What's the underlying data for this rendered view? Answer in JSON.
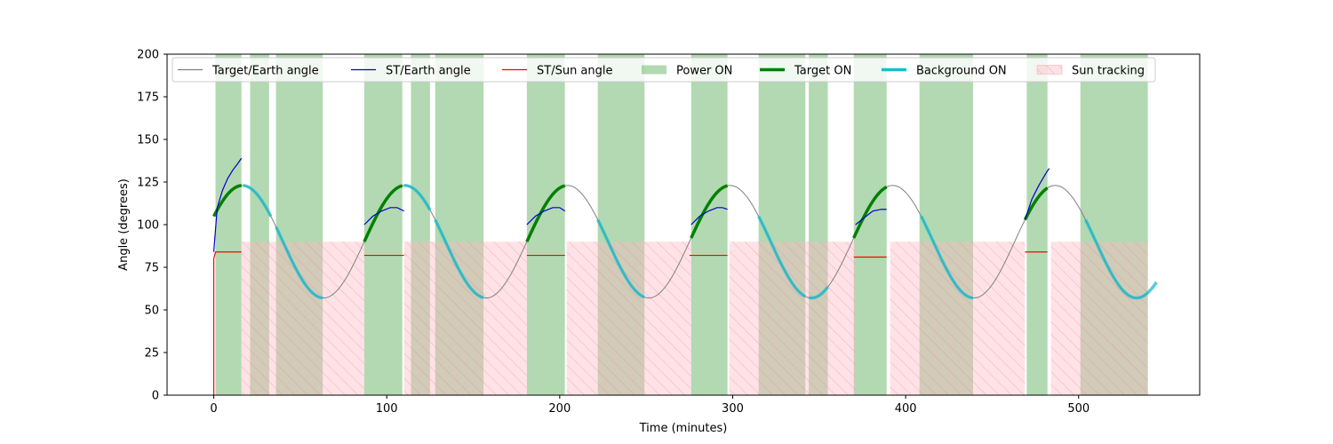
{
  "chart_data": {
    "type": "line",
    "title": "",
    "xlabel": "Time (minutes)",
    "ylabel": "Angle (degrees)",
    "xlim": [
      -27,
      570
    ],
    "ylim": [
      0,
      200
    ],
    "xticks": [
      0,
      100,
      200,
      300,
      400,
      500
    ],
    "yticks": [
      0,
      25,
      50,
      75,
      100,
      125,
      150,
      175,
      200
    ],
    "grid": false,
    "legend_placement": "top-center",
    "colors": {
      "target_earth": "#808080",
      "st_earth": "#0000cc",
      "st_sun": "#ff0000",
      "power_on": "#008000",
      "target_on": "#008000",
      "background_on": "#17becf",
      "sun_tracking": "#ffb6c1"
    },
    "legend": [
      {
        "key": "target_earth",
        "label": "Target/Earth angle",
        "style": "line-thin",
        "color": "#808080"
      },
      {
        "key": "st_earth",
        "label": "ST/Earth angle",
        "style": "line-thin",
        "color": "#0000cc"
      },
      {
        "key": "st_sun",
        "label": "ST/Sun angle",
        "style": "line-thin",
        "color": "#ff0000"
      },
      {
        "key": "power_on",
        "label": "Power ON",
        "style": "patch",
        "color": "#008000"
      },
      {
        "key": "target_on",
        "label": "Target ON",
        "style": "line-thick",
        "color": "#008000"
      },
      {
        "key": "background_on",
        "label": "Background ON",
        "style": "line-thick",
        "color": "#17becf"
      },
      {
        "key": "sun_tracking",
        "label": "Sun tracking",
        "style": "hatch-patch",
        "color": "#ffb6c1"
      }
    ],
    "target_earth_model": {
      "mean": 90,
      "amplitude": 33,
      "period": 94,
      "phase_min": 16.5
    },
    "x_range": [
      0,
      540
    ],
    "power_on": [
      [
        1,
        16
      ],
      [
        21,
        32
      ],
      [
        36,
        63
      ],
      [
        87,
        109
      ],
      [
        114,
        125
      ],
      [
        128,
        156
      ],
      [
        181,
        203
      ],
      [
        222,
        249
      ],
      [
        276,
        297
      ],
      [
        315,
        342
      ],
      [
        344,
        355
      ],
      [
        370,
        389
      ],
      [
        408,
        439
      ],
      [
        470,
        482
      ],
      [
        501,
        540
      ]
    ],
    "sun_tracking": [
      {
        "start": 16,
        "end": 87,
        "angle": 90
      },
      {
        "start": 110,
        "end": 181,
        "angle": 90
      },
      {
        "start": 204,
        "end": 276,
        "angle": 90
      },
      {
        "start": 298,
        "end": 371,
        "angle": 90
      },
      {
        "start": 391,
        "end": 469,
        "angle": 90
      },
      {
        "start": 484,
        "end": 540,
        "angle": 90
      }
    ],
    "target_on": [
      [
        0,
        16
      ],
      [
        87,
        109
      ],
      [
        181,
        203
      ],
      [
        276,
        297
      ],
      [
        370,
        389
      ],
      [
        469,
        482
      ]
    ],
    "background_on": [
      [
        17,
        33
      ],
      [
        36,
        63
      ],
      [
        110,
        125
      ],
      [
        128,
        156
      ],
      [
        222,
        249
      ],
      [
        315,
        342
      ],
      [
        344,
        355
      ],
      [
        409,
        439
      ],
      [
        504,
        545
      ]
    ],
    "st_earth_angle": [
      {
        "x": [
          0,
          2,
          5,
          8,
          11,
          14,
          16
        ],
        "y": [
          84,
          110,
          120,
          127,
          132,
          136,
          139
        ]
      },
      {
        "x": [
          87,
          92,
          97,
          102,
          106,
          110
        ],
        "y": [
          100,
          105,
          108,
          110,
          110,
          108
        ]
      },
      {
        "x": [
          181,
          186,
          191,
          196,
          200,
          203
        ],
        "y": [
          100,
          105,
          108,
          110,
          110,
          108
        ]
      },
      {
        "x": [
          276,
          281,
          286,
          291,
          294,
          297
        ],
        "y": [
          100,
          105,
          108,
          110,
          110,
          109
        ]
      },
      {
        "x": [
          371,
          376,
          381,
          386,
          389
        ],
        "y": [
          100,
          104,
          108,
          109,
          109
        ]
      },
      {
        "x": [
          469,
          473,
          477,
          481,
          483
        ],
        "y": [
          103,
          115,
          123,
          130,
          133
        ]
      }
    ],
    "st_sun_angle": [
      {
        "x": [
          0,
          0,
          1,
          16
        ],
        "y": [
          0,
          80,
          84,
          84
        ]
      },
      {
        "x": [
          87,
          110
        ],
        "y": [
          82,
          82
        ]
      },
      {
        "x": [
          181,
          203
        ],
        "y": [
          82,
          82
        ]
      },
      {
        "x": [
          275,
          297
        ],
        "y": [
          82,
          82
        ]
      },
      {
        "x": [
          370,
          389
        ],
        "y": [
          81,
          81
        ]
      },
      {
        "x": [
          469,
          482
        ],
        "y": [
          84,
          84
        ]
      }
    ]
  }
}
